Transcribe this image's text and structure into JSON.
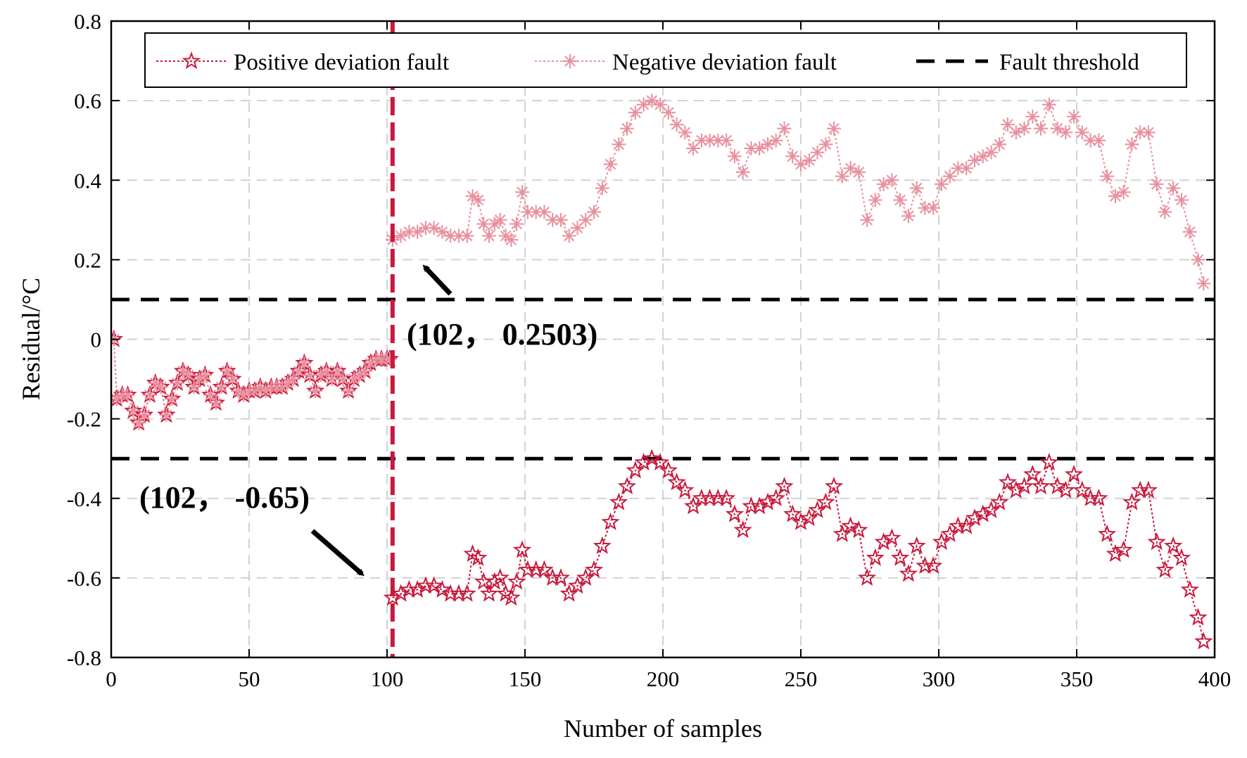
{
  "chart_data": {
    "type": "line",
    "title": "",
    "xlabel": "Number of samples",
    "ylabel": "Residual/°C",
    "xlim": [
      0,
      400
    ],
    "ylim": [
      -0.8,
      0.8
    ],
    "xticks": [
      0,
      50,
      100,
      150,
      200,
      250,
      300,
      350,
      400
    ],
    "yticks": [
      0.8,
      0.6,
      0.4,
      0.2,
      0,
      -0.2,
      -0.4,
      -0.6,
      -0.8
    ],
    "xtick_labels": [
      "0",
      "50",
      "100",
      "150",
      "200",
      "250",
      "300",
      "350",
      "400"
    ],
    "ytick_labels": [
      "0.8",
      "0.6",
      "0.4",
      "0.2",
      "0",
      "-0.2",
      "-0.4",
      "-0.6",
      "-0.8"
    ],
    "grid": true,
    "legend_position": "top",
    "colors": {
      "positive": "#c8193c",
      "negative": "#e8909e",
      "threshold": "#000000",
      "fault_line": "#c8193c"
    },
    "shared_prefix": {
      "x": [
        1,
        2,
        4,
        6,
        8,
        10,
        12,
        14,
        16,
        18,
        20,
        22,
        24,
        26,
        28,
        30,
        32,
        34,
        36,
        38,
        40,
        42,
        44,
        46,
        48,
        50,
        52,
        54,
        56,
        58,
        60,
        62,
        64,
        66,
        68,
        70,
        72,
        74,
        76,
        78,
        80,
        82,
        84,
        86,
        88,
        90,
        92,
        94,
        96,
        98,
        100,
        101
      ],
      "values": [
        0.0,
        -0.15,
        -0.14,
        -0.14,
        -0.18,
        -0.21,
        -0.19,
        -0.14,
        -0.11,
        -0.12,
        -0.19,
        -0.15,
        -0.11,
        -0.08,
        -0.09,
        -0.12,
        -0.1,
        -0.09,
        -0.14,
        -0.16,
        -0.12,
        -0.08,
        -0.1,
        -0.13,
        -0.14,
        -0.13,
        -0.13,
        -0.12,
        -0.13,
        -0.12,
        -0.12,
        -0.12,
        -0.11,
        -0.1,
        -0.08,
        -0.06,
        -0.09,
        -0.13,
        -0.09,
        -0.08,
        -0.1,
        -0.08,
        -0.1,
        -0.13,
        -0.1,
        -0.09,
        -0.08,
        -0.06,
        -0.05,
        -0.05,
        -0.05,
        -0.05
      ]
    },
    "series": [
      {
        "name": "Positive deviation fault",
        "marker": "pentagram",
        "x": [
          102,
          105,
          108,
          111,
          114,
          117,
          120,
          123,
          126,
          129,
          131,
          133,
          135,
          137,
          139,
          141,
          143,
          145,
          147,
          149,
          151,
          154,
          157,
          160,
          163,
          166,
          169,
          172,
          175,
          178,
          181,
          184,
          187,
          190,
          193,
          196,
          199,
          202,
          205,
          208,
          211,
          214,
          217,
          220,
          223,
          226,
          229,
          232,
          235,
          238,
          241,
          244,
          247,
          250,
          253,
          256,
          259,
          262,
          265,
          268,
          271,
          274,
          277,
          280,
          283,
          286,
          289,
          292,
          295,
          298,
          301,
          304,
          307,
          310,
          313,
          316,
          319,
          322,
          325,
          328,
          331,
          334,
          337,
          340,
          343,
          346,
          349,
          352,
          355,
          358,
          361,
          364,
          367,
          370,
          373,
          376,
          379,
          382,
          385,
          388,
          391,
          394,
          396
        ],
        "values": [
          -0.65,
          -0.64,
          -0.63,
          -0.63,
          -0.62,
          -0.62,
          -0.63,
          -0.64,
          -0.64,
          -0.64,
          -0.54,
          -0.55,
          -0.61,
          -0.64,
          -0.61,
          -0.6,
          -0.64,
          -0.65,
          -0.61,
          -0.53,
          -0.58,
          -0.58,
          -0.58,
          -0.6,
          -0.6,
          -0.64,
          -0.62,
          -0.6,
          -0.58,
          -0.52,
          -0.46,
          -0.41,
          -0.37,
          -0.33,
          -0.31,
          -0.3,
          -0.31,
          -0.33,
          -0.36,
          -0.38,
          -0.42,
          -0.4,
          -0.4,
          -0.4,
          -0.4,
          -0.44,
          -0.48,
          -0.42,
          -0.42,
          -0.41,
          -0.4,
          -0.37,
          -0.44,
          -0.46,
          -0.45,
          -0.43,
          -0.41,
          -0.37,
          -0.49,
          -0.47,
          -0.48,
          -0.6,
          -0.55,
          -0.51,
          -0.5,
          -0.55,
          -0.59,
          -0.52,
          -0.57,
          -0.57,
          -0.51,
          -0.49,
          -0.47,
          -0.47,
          -0.45,
          -0.44,
          -0.43,
          -0.41,
          -0.36,
          -0.38,
          -0.37,
          -0.34,
          -0.37,
          -0.31,
          -0.37,
          -0.38,
          -0.34,
          -0.38,
          -0.4,
          -0.4,
          -0.49,
          -0.54,
          -0.53,
          -0.41,
          -0.38,
          -0.38,
          -0.51,
          -0.58,
          -0.52,
          -0.55,
          -0.63,
          -0.7,
          -0.76
        ]
      },
      {
        "name": "Negative deviation fault",
        "marker": "asterisk",
        "x": [
          102,
          105,
          108,
          111,
          114,
          117,
          120,
          123,
          126,
          129,
          131,
          133,
          135,
          137,
          139,
          141,
          143,
          145,
          147,
          149,
          151,
          154,
          157,
          160,
          163,
          166,
          169,
          172,
          175,
          178,
          181,
          184,
          187,
          190,
          193,
          196,
          199,
          202,
          205,
          208,
          211,
          214,
          217,
          220,
          223,
          226,
          229,
          232,
          235,
          238,
          241,
          244,
          247,
          250,
          253,
          256,
          259,
          262,
          265,
          268,
          271,
          274,
          277,
          280,
          283,
          286,
          289,
          292,
          295,
          298,
          301,
          304,
          307,
          310,
          313,
          316,
          319,
          322,
          325,
          328,
          331,
          334,
          337,
          340,
          343,
          346,
          349,
          352,
          355,
          358,
          361,
          364,
          367,
          370,
          373,
          376,
          379,
          382,
          385,
          388,
          391,
          394,
          396
        ],
        "values": [
          0.25,
          0.26,
          0.27,
          0.27,
          0.28,
          0.28,
          0.27,
          0.26,
          0.26,
          0.26,
          0.36,
          0.35,
          0.29,
          0.26,
          0.29,
          0.3,
          0.26,
          0.25,
          0.29,
          0.37,
          0.32,
          0.32,
          0.32,
          0.3,
          0.3,
          0.26,
          0.28,
          0.3,
          0.32,
          0.38,
          0.44,
          0.49,
          0.53,
          0.57,
          0.59,
          0.6,
          0.59,
          0.57,
          0.54,
          0.52,
          0.48,
          0.5,
          0.5,
          0.5,
          0.5,
          0.46,
          0.42,
          0.48,
          0.48,
          0.49,
          0.5,
          0.53,
          0.46,
          0.44,
          0.45,
          0.47,
          0.49,
          0.53,
          0.41,
          0.43,
          0.42,
          0.3,
          0.35,
          0.39,
          0.4,
          0.35,
          0.31,
          0.38,
          0.33,
          0.33,
          0.39,
          0.41,
          0.43,
          0.43,
          0.45,
          0.46,
          0.47,
          0.49,
          0.54,
          0.52,
          0.53,
          0.56,
          0.53,
          0.59,
          0.53,
          0.52,
          0.56,
          0.52,
          0.5,
          0.5,
          0.41,
          0.36,
          0.37,
          0.49,
          0.52,
          0.52,
          0.39,
          0.32,
          0.38,
          0.35,
          0.27,
          0.2,
          0.14
        ]
      }
    ],
    "thresholds": [
      {
        "name": "Fault threshold",
        "value": 0.1
      },
      {
        "name": "Fault threshold",
        "value": -0.3
      }
    ],
    "fault_onset_x": 102,
    "legend": [
      {
        "name": "Positive deviation fault"
      },
      {
        "name": "Negative deviation fault"
      },
      {
        "name": "Fault threshold"
      }
    ],
    "annotations": [
      {
        "text": "(102， 0.2503)",
        "x": 102,
        "y": 0.2503
      },
      {
        "text": "(102， -0.65)",
        "x": 102,
        "y": -0.65
      }
    ]
  }
}
